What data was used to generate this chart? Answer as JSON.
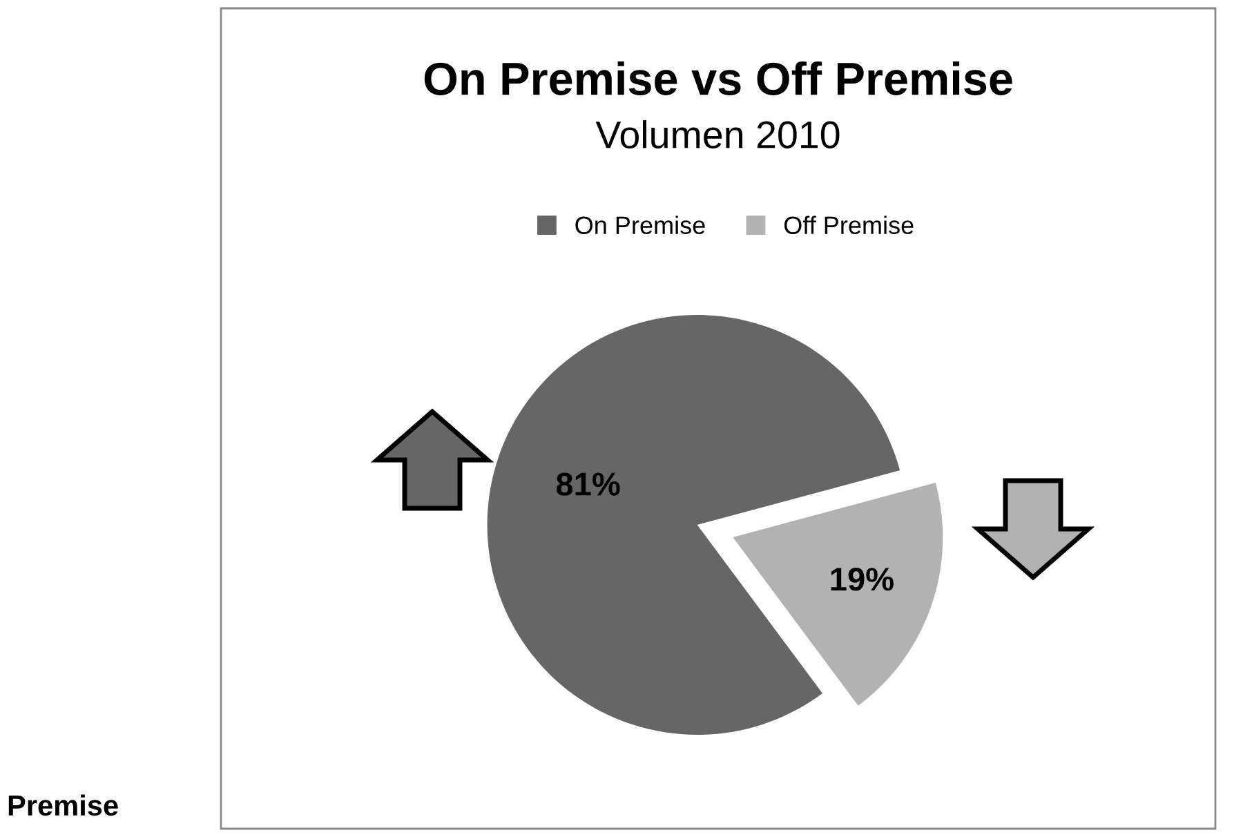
{
  "chart_data": {
    "type": "pie",
    "title": "On Premise vs Off Premise",
    "subtitle": "Volumen 2010",
    "categories": [
      "On Premise",
      "Off Premise"
    ],
    "values": [
      81,
      19
    ],
    "colors": [
      "#666666",
      "#b2b2b2"
    ],
    "value_labels": [
      "81%",
      "19%"
    ],
    "legend": "top",
    "annotations": [
      "Premise"
    ]
  }
}
